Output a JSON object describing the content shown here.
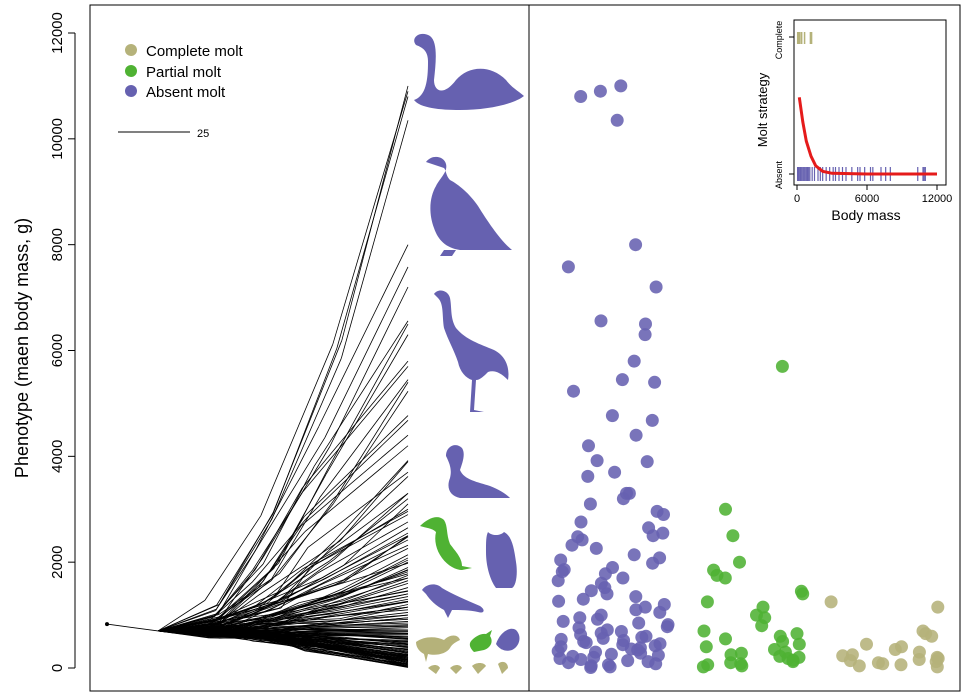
{
  "chart_data": {
    "type": "scatter",
    "ylabel": "Phenotype (maen body mass, g)",
    "yticks": [
      0,
      2000,
      4000,
      6000,
      8000,
      10000,
      12000
    ],
    "ylim": [
      -200,
      12500
    ],
    "legend": {
      "placement": "top-left",
      "entries": [
        {
          "label": "Complete molt",
          "color": "#b5b27a"
        },
        {
          "label": "Partial molt",
          "color": "#4fb233"
        },
        {
          "label": "Absent molt",
          "color": "#6661b0"
        }
      ]
    },
    "scale_bar": {
      "label": "25"
    },
    "silhouettes": [
      {
        "icon": "swan-icon",
        "color": "#6661b0"
      },
      {
        "icon": "vulture-icon",
        "color": "#6661b0"
      },
      {
        "icon": "crane-icon",
        "color": "#6661b0"
      },
      {
        "icon": "goose-icon",
        "color": "#6661b0"
      },
      {
        "icon": "cormorant-icon",
        "color": "#4fb233"
      },
      {
        "icon": "owl-icon",
        "color": "#6661b0"
      },
      {
        "icon": "crow-icon",
        "color": "#6661b0"
      },
      {
        "icon": "shorebird-icon",
        "color": "#b5b27a"
      },
      {
        "icon": "passerine-green-icon",
        "color": "#4fb233"
      },
      {
        "icon": "passerine-blue-icon",
        "color": "#6661b0"
      },
      {
        "icon": "small-bird-icon",
        "color": "#b5b27a"
      }
    ],
    "series": [
      {
        "name": "Absent molt",
        "color": "#6661b0",
        "values": [
          10900,
          10800,
          11000,
          10350,
          8000,
          7580,
          7200,
          6560,
          6500,
          6300,
          5800,
          5450,
          5400,
          5230,
          4770,
          4680,
          4400,
          4200,
          3920,
          3900,
          3700,
          3620,
          3300,
          3300,
          3200,
          3100,
          2960,
          2900,
          2760,
          2650,
          2550,
          2500,
          2480,
          2420,
          2320,
          2260,
          2140,
          2080,
          2040,
          1980,
          1900,
          1860,
          1820,
          1780,
          1700,
          1650,
          1600,
          1520,
          1460,
          1400,
          1350,
          1300,
          1260,
          1200,
          1150,
          1100,
          1050,
          1000,
          950,
          920,
          880,
          850,
          820,
          780,
          760,
          720,
          690,
          660,
          630,
          600,
          580,
          560,
          540,
          520,
          500,
          480,
          460,
          440,
          420,
          400,
          380,
          360,
          340,
          320,
          300,
          280,
          260,
          240,
          220,
          200,
          180,
          160,
          140,
          120,
          100,
          80,
          60,
          40,
          20,
          10
        ]
      },
      {
        "name": "Partial molt",
        "color": "#4fb233",
        "values": [
          5700,
          3000,
          2500,
          2000,
          1850,
          1750,
          1700,
          1450,
          1400,
          1250,
          1150,
          1000,
          950,
          800,
          700,
          650,
          600,
          550,
          500,
          450,
          400,
          350,
          300,
          280,
          250,
          220,
          200,
          180,
          150,
          120,
          100,
          80,
          60,
          40,
          20
        ]
      },
      {
        "name": "Complete molt",
        "color": "#b5b27a",
        "values": [
          1250,
          1150,
          700,
          650,
          600,
          450,
          400,
          350,
          300,
          250,
          230,
          200,
          180,
          160,
          140,
          120,
          100,
          80,
          60,
          40,
          20
        ]
      }
    ],
    "inset": {
      "type": "scatter",
      "xlabel": "Body mass",
      "ylabel": "Molt strategy",
      "xticks": [
        0,
        6000,
        12000
      ],
      "ytick_labels": [
        "Absent",
        "Complete"
      ],
      "curve_color": "#e51b1b",
      "curve": [
        [
          200,
          0.56
        ],
        [
          500,
          0.38
        ],
        [
          800,
          0.24
        ],
        [
          1200,
          0.13
        ],
        [
          1600,
          0.06
        ],
        [
          2200,
          0.02
        ],
        [
          3000,
          0.005
        ],
        [
          6000,
          0.0
        ],
        [
          12000,
          0.0
        ]
      ],
      "absent_rug": [
        50,
        100,
        150,
        200,
        300,
        400,
        500,
        600,
        700,
        800,
        900,
        1000,
        1100,
        1300,
        1500,
        1800,
        2000,
        2200,
        2500,
        2800,
        3100,
        3300,
        3600,
        3900,
        4200,
        4700,
        5200,
        5400,
        5800,
        6300,
        6500,
        7200,
        7600,
        8000,
        10350,
        10800,
        10900,
        11000
      ],
      "complete_rug": [
        60,
        150,
        250,
        400,
        650,
        1150,
        1250
      ]
    }
  }
}
